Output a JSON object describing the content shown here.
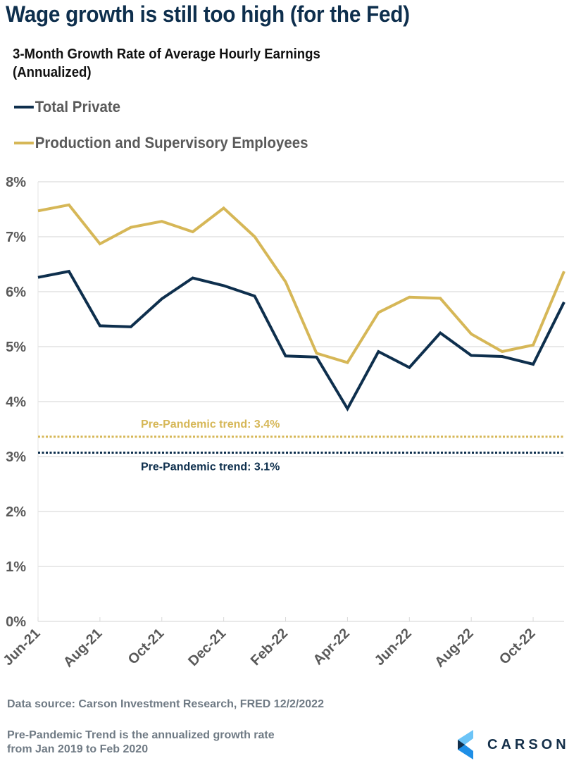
{
  "header": {
    "title": "Wage growth is still too high (for the Fed)",
    "subtitle_line1": "3-Month Growth Rate of Average Hourly Earnings",
    "subtitle_line2": "(Annualized)"
  },
  "colors": {
    "total_private": "#0e2f4d",
    "production_supervisory": "#d6b757",
    "grid": "#dcdcdc",
    "axis_text": "#595959",
    "footer_text": "#6f7a84",
    "logo_light": "#5bc0f5",
    "logo_mid": "#1e90e8",
    "logo_dark": "#12304d"
  },
  "legend": [
    {
      "label": "Total Private",
      "color": "#0e2f4d"
    },
    {
      "label": "Production and Supervisory Employees",
      "color": "#d6b757"
    }
  ],
  "chart_data": {
    "type": "line",
    "title": "3-Month Growth Rate of Average Hourly Earnings (Annualized)",
    "xlabel": "",
    "ylabel": "",
    "x": [
      "Jun-21",
      "Jul-21",
      "Aug-21",
      "Sep-21",
      "Oct-21",
      "Nov-21",
      "Dec-21",
      "Jan-22",
      "Feb-22",
      "Mar-22",
      "Apr-22",
      "May-22",
      "Jun-22",
      "Jul-22",
      "Aug-22",
      "Sep-22",
      "Oct-22",
      "Nov-22"
    ],
    "x_tick_labels": [
      "Jun-21",
      "Aug-21",
      "Oct-21",
      "Dec-21",
      "Feb-22",
      "Apr-22",
      "Jun-22",
      "Aug-22",
      "Oct-22"
    ],
    "ylim": [
      0,
      8
    ],
    "y_ticks": [
      0,
      1,
      2,
      3,
      4,
      5,
      6,
      7,
      8
    ],
    "y_tick_labels": [
      "0%",
      "1%",
      "2%",
      "3%",
      "4%",
      "5%",
      "6%",
      "7%",
      "8%"
    ],
    "grid": true,
    "legend_position": "top-left",
    "series": [
      {
        "name": "Total Private",
        "color": "#0e2f4d",
        "values": [
          6.26,
          6.37,
          5.38,
          5.36,
          5.87,
          6.25,
          6.11,
          5.92,
          4.83,
          4.81,
          3.87,
          4.91,
          4.62,
          5.25,
          4.84,
          4.82,
          4.68,
          5.81
        ]
      },
      {
        "name": "Production and Supervisory Employees",
        "color": "#d6b757",
        "values": [
          7.47,
          7.58,
          6.87,
          7.17,
          7.28,
          7.09,
          7.52,
          7.0,
          6.18,
          4.88,
          4.71,
          5.62,
          5.9,
          5.88,
          5.23,
          4.91,
          5.03,
          6.37
        ]
      }
    ],
    "reference_lines": [
      {
        "name": "Pre-Pandemic trend (Production and Supervisory)",
        "value": 3.36,
        "label": "Pre-Pandemic trend: 3.4%",
        "color": "#d6b757",
        "style": "dotted"
      },
      {
        "name": "Pre-Pandemic trend (Total Private)",
        "value": 3.07,
        "label": "Pre-Pandemic trend: 3.1%",
        "color": "#0e2f4d",
        "style": "dotted"
      }
    ]
  },
  "footer": {
    "source": "Data source: Carson Investment Research, FRED   12/2/2022",
    "note_line1": "Pre-Pandemic Trend is the annualized growth rate",
    "note_line2": "from Jan 2019 to Feb 2020"
  },
  "logo": {
    "name": "CARSON",
    "icon": "carson-chevron-logo-icon"
  }
}
